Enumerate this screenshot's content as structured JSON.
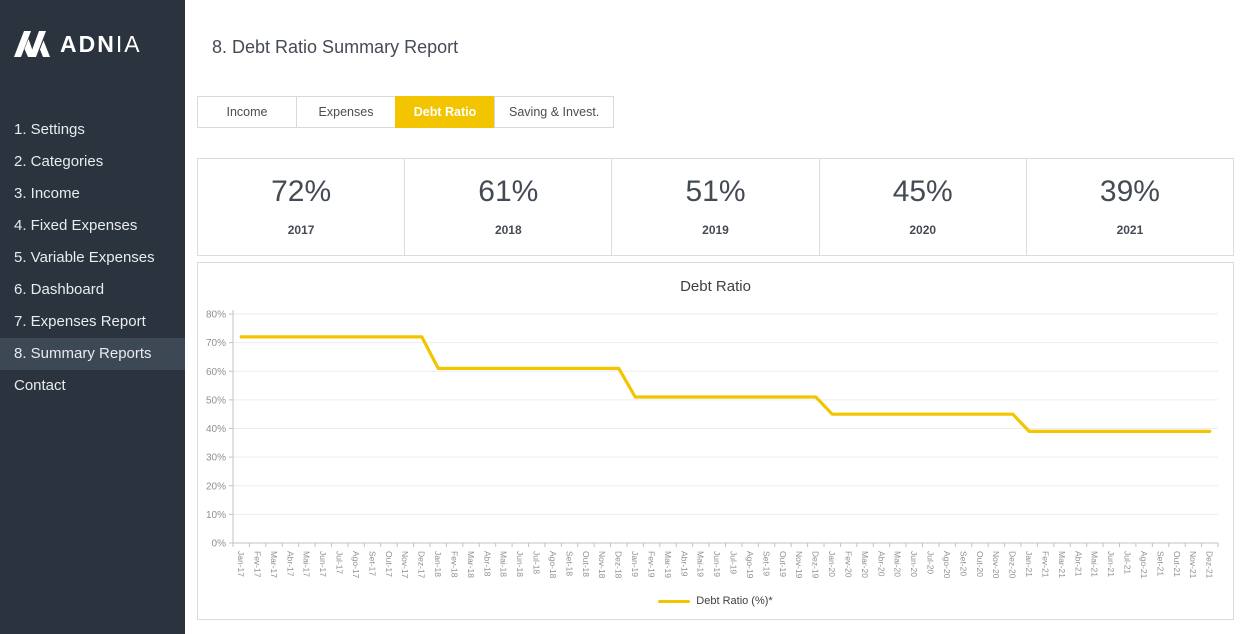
{
  "sidebar": {
    "logo_bold": "ADN",
    "logo_light": "IA",
    "items": [
      {
        "label": "1. Settings",
        "active": false
      },
      {
        "label": "2. Categories",
        "active": false
      },
      {
        "label": "3. Income",
        "active": false
      },
      {
        "label": "4. Fixed Expenses",
        "active": false
      },
      {
        "label": "5. Variable Expenses",
        "active": false
      },
      {
        "label": "6. Dashboard",
        "active": false
      },
      {
        "label": "7. Expenses Report",
        "active": false
      },
      {
        "label": "8. Summary Reports",
        "active": true
      },
      {
        "label": "Contact",
        "active": false
      }
    ]
  },
  "header": {
    "title": "8. Debt Ratio Summary Report"
  },
  "tabs": [
    {
      "label": "Income",
      "active": false
    },
    {
      "label": "Expenses",
      "active": false
    },
    {
      "label": "Debt Ratio",
      "active": true
    },
    {
      "label": "Saving & Invest.",
      "active": false
    }
  ],
  "kpis": [
    {
      "value": "72%",
      "year": "2017"
    },
    {
      "value": "61%",
      "year": "2018"
    },
    {
      "value": "51%",
      "year": "2019"
    },
    {
      "value": "45%",
      "year": "2020"
    },
    {
      "value": "39%",
      "year": "2021"
    }
  ],
  "colors": {
    "accent": "#F2C500",
    "sidebar_bg": "#2A333E",
    "sidebar_active_bg": "#3D4855",
    "card_border": "#DCDCDC",
    "grid": "#EDEDED",
    "axis": "#C3C3C3",
    "tick_label": "#8F8F8F"
  },
  "chart_data": {
    "type": "line",
    "title": "Debt Ratio",
    "xlabel": "",
    "ylabel": "",
    "ylim": [
      0,
      80
    ],
    "ytick_step": 10,
    "ytick_suffix": "%",
    "grid": true,
    "legend_position": "bottom",
    "x": [
      "Jan-17",
      "Fev-17",
      "Mar-17",
      "Abr-17",
      "Mai-17",
      "Jun-17",
      "Jul-17",
      "Ago-17",
      "Set-17",
      "Out-17",
      "Nov-17",
      "Dez-17",
      "Jan-18",
      "Fev-18",
      "Mar-18",
      "Abr-18",
      "Mai-18",
      "Jun-18",
      "Jul-18",
      "Ago-18",
      "Set-18",
      "Out-18",
      "Nov-18",
      "Dez-18",
      "Jan-19",
      "Fev-19",
      "Mar-19",
      "Abr-19",
      "Mai-19",
      "Jun-19",
      "Jul-19",
      "Ago-19",
      "Set-19",
      "Out-19",
      "Nov-19",
      "Dez-19",
      "Jan-20",
      "Fev-20",
      "Mar-20",
      "Abr-20",
      "Mai-20",
      "Jun-20",
      "Jul-20",
      "Ago-20",
      "Set-20",
      "Out-20",
      "Nov-20",
      "Dez-20",
      "Jan-21",
      "Fev-21",
      "Mar-21",
      "Abr-21",
      "Mai-21",
      "Jun-21",
      "Jul-21",
      "Ago-21",
      "Set-21",
      "Out-21",
      "Nov-21",
      "Dez-21"
    ],
    "series": [
      {
        "name": "Debt Ratio (%)*",
        "color": "#F2C500",
        "values": [
          72,
          72,
          72,
          72,
          72,
          72,
          72,
          72,
          72,
          72,
          72,
          72,
          61,
          61,
          61,
          61,
          61,
          61,
          61,
          61,
          61,
          61,
          61,
          61,
          51,
          51,
          51,
          51,
          51,
          51,
          51,
          51,
          51,
          51,
          51,
          51,
          45,
          45,
          45,
          45,
          45,
          45,
          45,
          45,
          45,
          45,
          45,
          45,
          39,
          39,
          39,
          39,
          39,
          39,
          39,
          39,
          39,
          39,
          39,
          39
        ]
      }
    ]
  }
}
